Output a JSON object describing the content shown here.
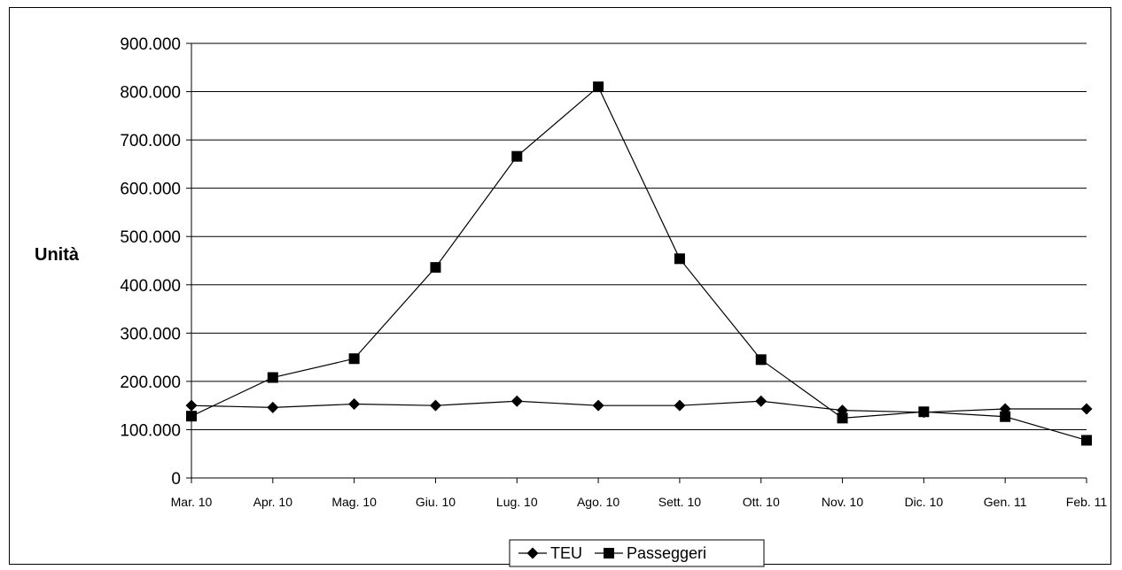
{
  "chart_data": {
    "type": "line",
    "title": "",
    "xlabel": "",
    "ylabel": "Unità",
    "ylim": [
      0,
      900000
    ],
    "yticks": [
      "0",
      "100.000",
      "200.000",
      "300.000",
      "400.000",
      "500.000",
      "600.000",
      "700.000",
      "800.000",
      "900.000"
    ],
    "ytick_values": [
      0,
      100000,
      200000,
      300000,
      400000,
      500000,
      600000,
      700000,
      800000,
      900000
    ],
    "categories": [
      "Mar. 10",
      "Apr. 10",
      "Mag. 10",
      "Giu. 10",
      "Lug. 10",
      "Ago. 10",
      "Sett. 10",
      "Ott. 10",
      "Nov. 10",
      "Dic. 10",
      "Gen. 11",
      "Feb. 11"
    ],
    "grid": true,
    "legend_position": "bottom",
    "series": [
      {
        "name": "TEU",
        "marker": "diamond",
        "color": "#000000",
        "values": [
          150000,
          146000,
          153000,
          150000,
          159000,
          150000,
          150000,
          159000,
          140000,
          136000,
          143000,
          143000
        ]
      },
      {
        "name": "Passeggeri",
        "marker": "square",
        "color": "#000000",
        "values": [
          128000,
          208000,
          247000,
          436000,
          666000,
          810000,
          454000,
          245000,
          124000,
          137000,
          127000,
          78000
        ]
      }
    ]
  }
}
